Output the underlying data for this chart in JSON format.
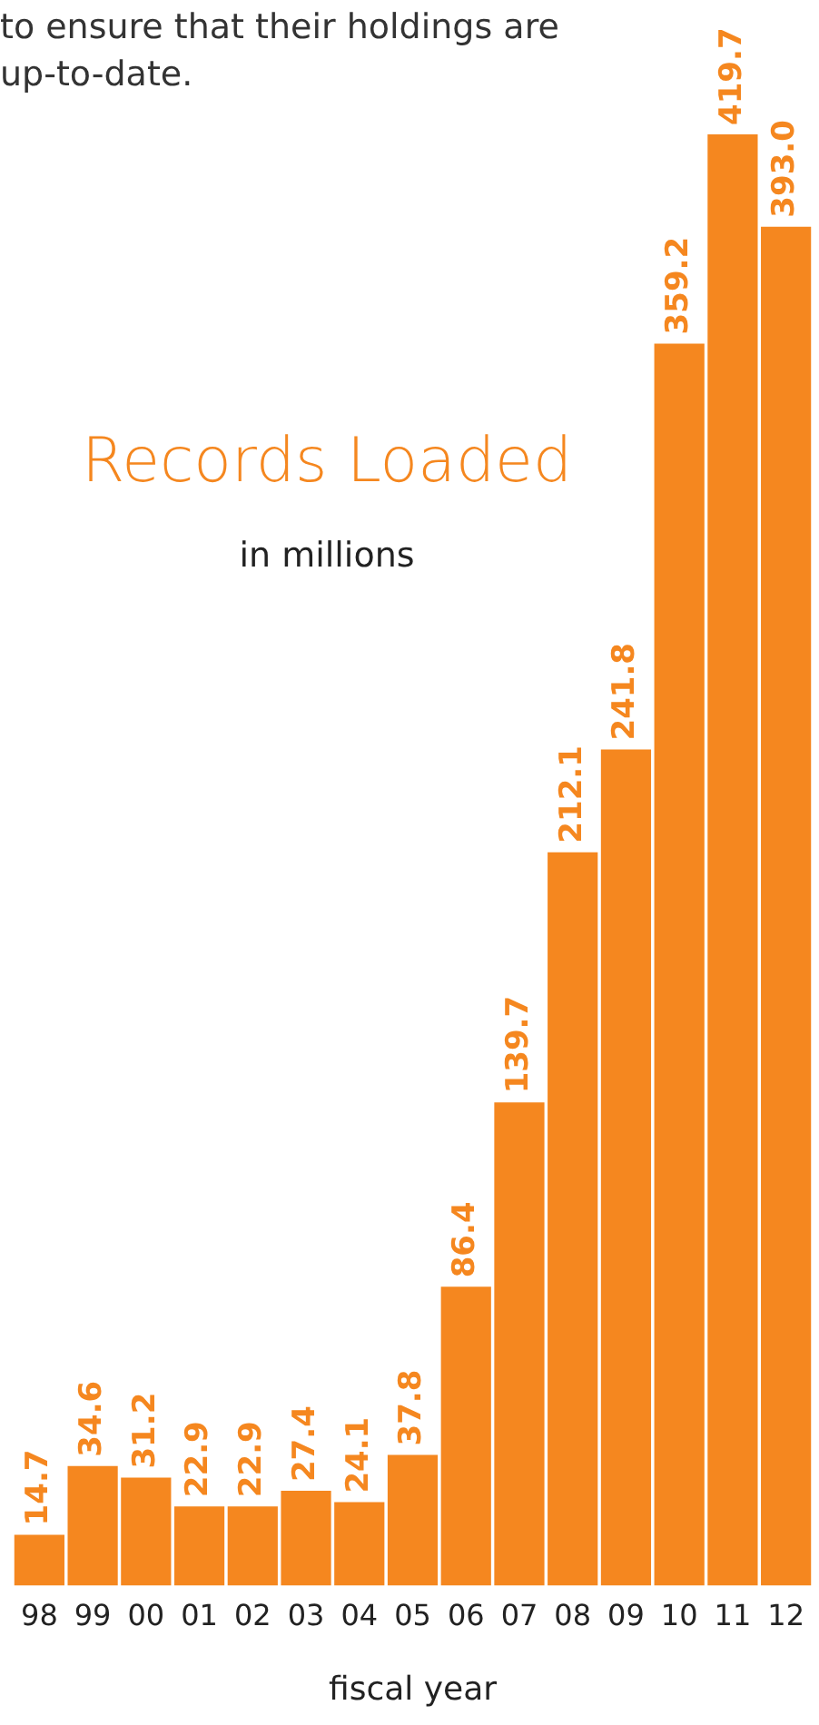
{
  "chart_data": {
    "type": "bar",
    "title": "Records Loaded",
    "subtitle": "in millions",
    "xlabel": "fiscal year",
    "annotations": [
      "to ensure that their holdings are up-to-date."
    ],
    "categories": [
      "98",
      "99",
      "00",
      "01",
      "02",
      "03",
      "04",
      "05",
      "06",
      "07",
      "08",
      "09",
      "10",
      "11",
      "12"
    ],
    "values": [
      14.7,
      34.6,
      31.2,
      22.9,
      22.9,
      27.4,
      24.1,
      37.8,
      86.4,
      139.7,
      212.1,
      241.8,
      359.2,
      419.7,
      393.0
    ],
    "value_labels": [
      "14.7",
      "34.6",
      "31.2",
      "22.9",
      "22.9",
      "27.4",
      "24.1",
      "37.8",
      "86.4",
      "139.7",
      "212.1",
      "241.8",
      "359.2",
      "419.7",
      "393.0"
    ],
    "color": "#f5871f",
    "grid": false,
    "legend": false
  }
}
